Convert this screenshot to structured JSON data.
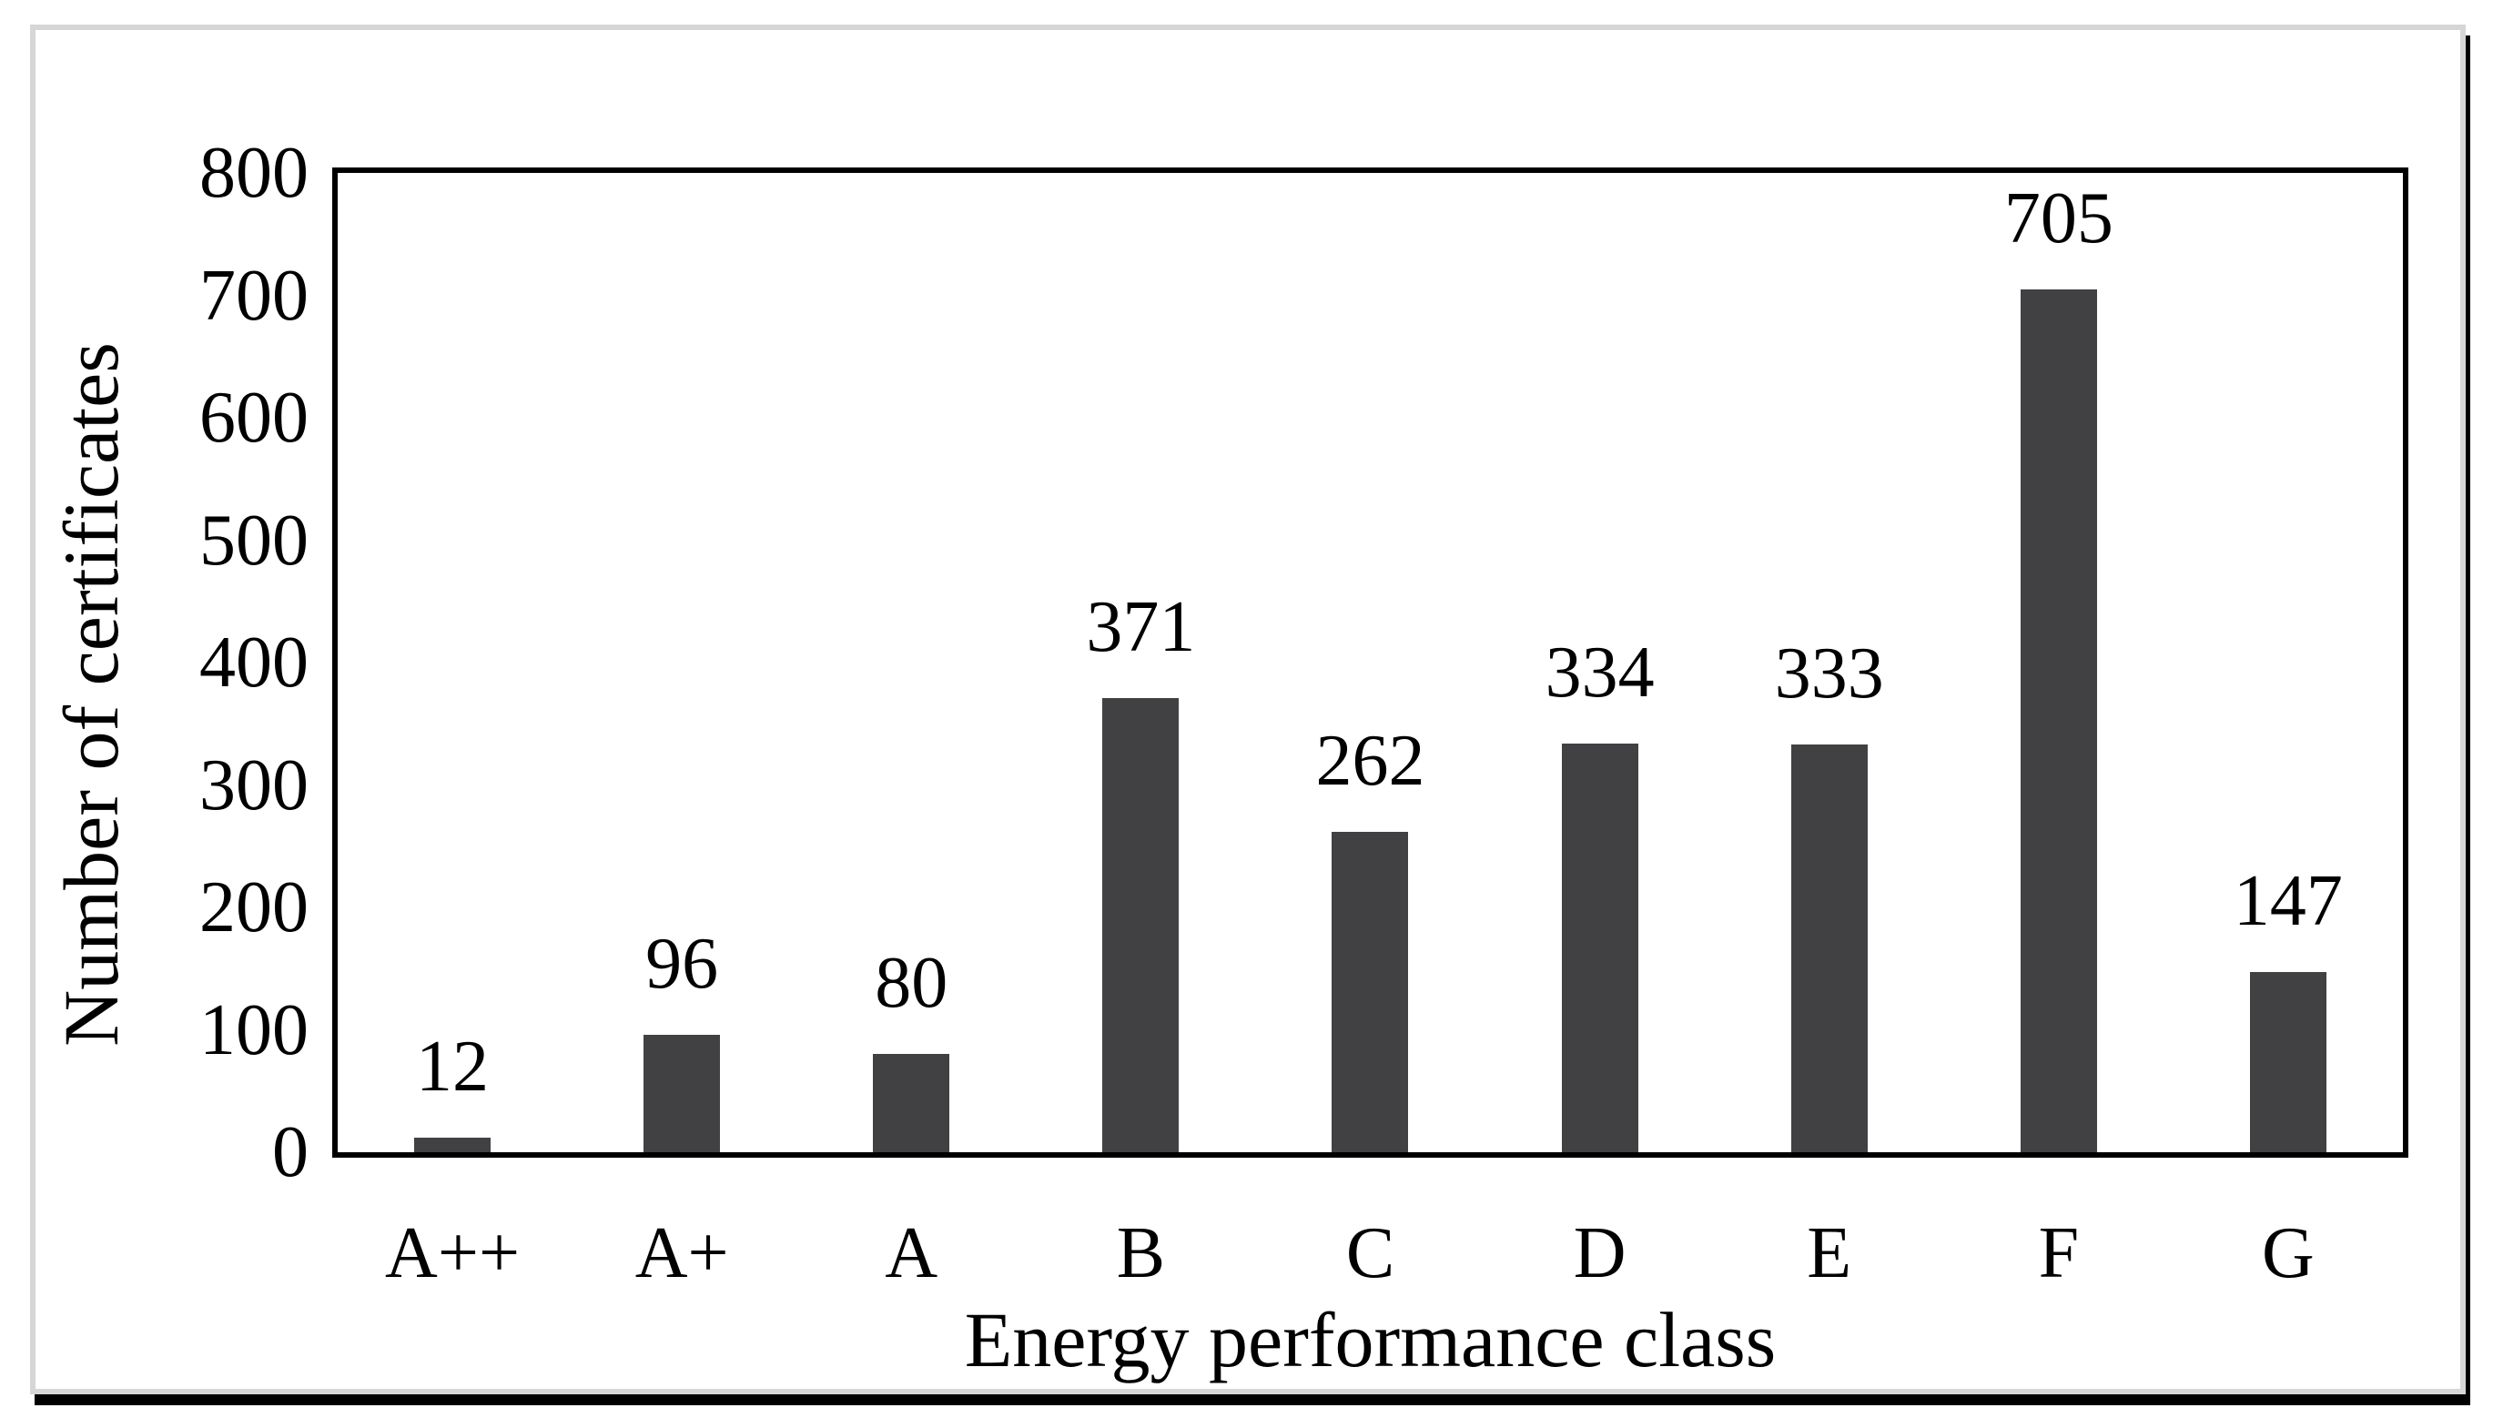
{
  "figure": {
    "background_color": "#ffffff",
    "panel_border_color": "#d6d6d6",
    "frame_shadow_color": "#000000"
  },
  "chart_data": {
    "type": "bar",
    "title": "",
    "categories": [
      "A++",
      "A+",
      "A",
      "B",
      "C",
      "D",
      "E",
      "F",
      "G"
    ],
    "values": [
      12,
      96,
      80,
      371,
      262,
      334,
      333,
      705,
      147
    ],
    "data_labels": [
      "12",
      "96",
      "80",
      "371",
      "262",
      "334",
      "333",
      "705",
      "147"
    ],
    "xlabel": "Energy performance class",
    "ylabel": "Number of certificates",
    "ylim": [
      0,
      800
    ],
    "ytick_step": 100,
    "ytick_labels": [
      "800",
      "700",
      "600",
      "500",
      "400",
      "300",
      "200",
      "100",
      "0"
    ],
    "bar_color": "#414042",
    "axis_color": "#000000",
    "grid": false,
    "legend_position": "none"
  }
}
